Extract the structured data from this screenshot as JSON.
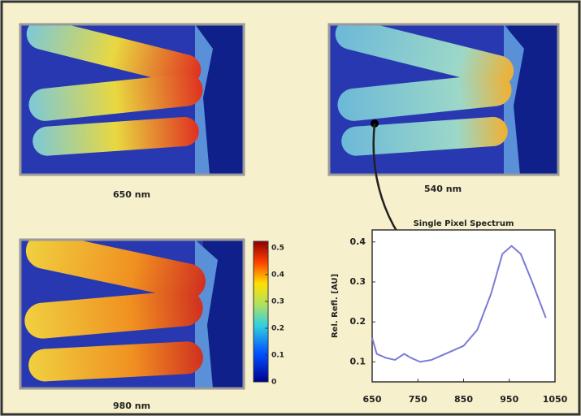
{
  "panels": [
    {
      "label": "650 nm"
    },
    {
      "label": "540 nm"
    },
    {
      "label": "980 nm"
    }
  ],
  "colorbar": {
    "ticks": [
      0,
      0.1,
      0.2,
      0.3,
      0.4,
      0.5
    ]
  },
  "chart_data": {
    "type": "line",
    "title": "Single Pixel Spectrum",
    "y_label": "Rel. Refl. [AU]",
    "x": [
      650,
      660,
      680,
      700,
      720,
      735,
      755,
      780,
      810,
      850,
      880,
      910,
      935,
      955,
      975,
      1000,
      1030
    ],
    "series": [
      {
        "name": "Single Pixel Spectrum",
        "color": "#7a7ad8",
        "values": [
          0.16,
          0.12,
          0.11,
          0.105,
          0.12,
          0.11,
          0.1,
          0.105,
          0.12,
          0.14,
          0.18,
          0.27,
          0.37,
          0.39,
          0.37,
          0.3,
          0.21
        ]
      }
    ],
    "xlim": [
      650,
      1050
    ],
    "ylim": [
      0.05,
      0.43
    ],
    "xticks": [
      650,
      750,
      850,
      950,
      1050
    ],
    "yticks": [
      0.1,
      0.2,
      0.3,
      0.4
    ]
  }
}
